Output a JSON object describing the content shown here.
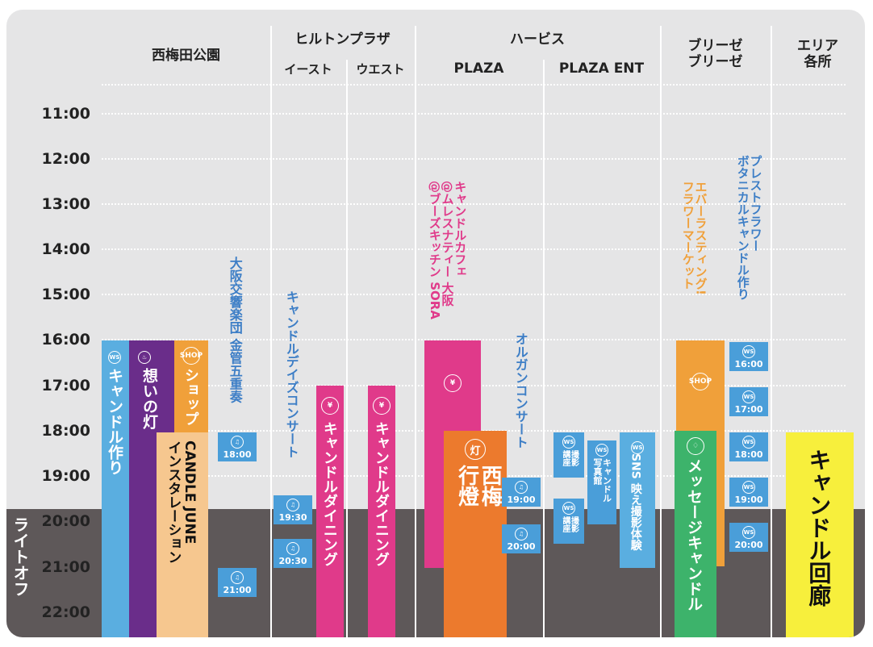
{
  "headers": {
    "nishiumeda": "西梅田公園",
    "hilton": "ヒルトンプラザ",
    "hilton_east": "イースト",
    "hilton_west": "ウエスト",
    "herbis": "ハービス",
    "herbis_plaza": "PLAZA",
    "herbis_plaza_ent": "PLAZA ENT",
    "breeze": "ブリーゼ\nブリーゼ",
    "area": "エリア\n各所"
  },
  "times": [
    "11:00",
    "12:00",
    "13:00",
    "14:00",
    "15:00",
    "16:00",
    "17:00",
    "18:00",
    "19:00",
    "20:00",
    "21:00",
    "22:00"
  ],
  "lightoff_label": "ライトオフ",
  "icons": {
    "ws": "WS",
    "shop": "SHOP",
    "music": "♫",
    "dining": "¥",
    "lantern": "灯",
    "candle": "♢",
    "cup": "♨"
  },
  "colors": {
    "panel": "#e5e5e6",
    "lightoff": "#5e5859",
    "blue": "#5aaee0",
    "badge_blue": "#4a9ed9",
    "purple": "#6a2d8a",
    "orange": "#f0a03a",
    "peach": "#f6c78f",
    "magenta": "#e03a8a",
    "orange_deep": "#ec7a2d",
    "green": "#3db36b",
    "yellow": "#f7ef3c"
  },
  "events": {
    "candle_make": "キャンドル作り",
    "omoi_no_hi": "想いの灯",
    "shop": "ショップ",
    "candle_june": "CANDLE JUNE\nインスタレーション",
    "osaka_brass": "大阪交響楽団 金管五重奏",
    "candle_days_concert": "キャンドルデイズコンサート",
    "candle_dining": "キャンドルダイニング",
    "candle_cafe": "キャンドルカフェ\n@ムレスナティー 大阪\n@ブーズキッチン SORA",
    "nishiume_andon": "西梅\n行燈",
    "organ_concert": "オルガンコンサート",
    "kouza_satsuei": "撮影\n講座",
    "candle_shashinkan": "キャンドル\n写真館",
    "sns_satsuei": "SNS 映え撮影体験",
    "everlasting": "エバーラスティング!\nフラワーマーケット",
    "preserved_flower": "プレストフラワー\nボタニカルキャンドル作り",
    "message_candle": "メッセージキャンドル",
    "candle_kairou": "キャンドル回廊"
  },
  "badges": {
    "t1800": "18:00",
    "t2100": "21:00",
    "t1930": "19:30",
    "t2030": "20:30",
    "t1900": "19:00",
    "t2000": "20:00",
    "t1600": "16:00",
    "t1700": "17:00"
  }
}
